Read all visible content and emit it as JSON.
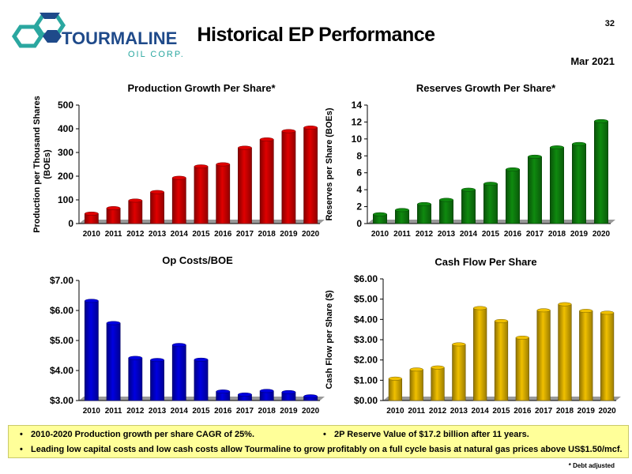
{
  "page_number": "32",
  "title": "Historical EP Performance",
  "date": "Mar 2021",
  "logo": {
    "name": "TOURMALINE",
    "sub": "OIL CORP."
  },
  "colors": {
    "red": "#e00000",
    "green": "#0f8a0f",
    "blue": "#0000e0",
    "gold": "#f0c000",
    "note_bg": "#ffff99",
    "logo_blue": "#1f4a8a",
    "logo_teal": "#2aa7a0"
  },
  "chart_data": [
    {
      "id": "production",
      "type": "bar",
      "title": "Production Growth Per Share*",
      "ylabel": "Production per Thousand Shares (BOEs)",
      "categories": [
        "2010",
        "2011",
        "2012",
        "2013",
        "2014",
        "2015",
        "2016",
        "2017",
        "2018",
        "2019",
        "2020"
      ],
      "values": [
        42,
        65,
        97,
        133,
        193,
        241,
        250,
        320,
        355,
        390,
        405
      ],
      "ylim": [
        0,
        500
      ],
      "yticks": [
        0,
        100,
        200,
        300,
        400,
        500
      ],
      "ytick_labels": [
        "0",
        "100",
        "200",
        "300",
        "400",
        "500"
      ],
      "grid": false,
      "color": "#e00000"
    },
    {
      "id": "reserves",
      "type": "bar",
      "title": "Reserves Growth Per Share*",
      "ylabel": "Reserves per Share (BOEs)",
      "categories": [
        "2010",
        "2011",
        "2012",
        "2013",
        "2014",
        "2015",
        "2016",
        "2017",
        "2018",
        "2019",
        "2020"
      ],
      "values": [
        1.1,
        1.6,
        2.3,
        2.8,
        4.0,
        4.7,
        6.4,
        7.9,
        9.0,
        9.4,
        12.1
      ],
      "ylim": [
        0,
        14
      ],
      "yticks": [
        0,
        2,
        4,
        6,
        8,
        10,
        12,
        14
      ],
      "ytick_labels": [
        "0",
        "2",
        "4",
        "6",
        "8",
        "10",
        "12",
        "14"
      ],
      "grid": false,
      "color": "#0f8a0f"
    },
    {
      "id": "opcosts",
      "type": "bar",
      "title": "Op Costs/BOE",
      "ylabel": "",
      "categories": [
        "2010",
        "2011",
        "2012",
        "2013",
        "2014",
        "2015",
        "2016",
        "2017",
        "2018",
        "2019",
        "2020"
      ],
      "values": [
        6.32,
        5.58,
        4.42,
        4.35,
        4.85,
        4.36,
        3.3,
        3.2,
        3.32,
        3.28,
        3.14
      ],
      "ylim": [
        3,
        7
      ],
      "yticks": [
        3,
        4,
        5,
        6,
        7
      ],
      "ytick_labels": [
        "$3.00",
        "$4.00",
        "$5.00",
        "$6.00",
        "$7.00"
      ],
      "grid": false,
      "color": "#0000e0"
    },
    {
      "id": "cashflow",
      "type": "bar",
      "title": "Cash Flow Per Share",
      "ylabel": "Cash Flow per Share ($)",
      "categories": [
        "2010",
        "2011",
        "2012",
        "2013",
        "2014",
        "2015",
        "2016",
        "2017",
        "2018",
        "2019",
        "2020"
      ],
      "values": [
        1.08,
        1.53,
        1.63,
        2.77,
        4.56,
        3.92,
        3.1,
        4.45,
        4.75,
        4.42,
        4.33
      ],
      "ylim": [
        0,
        6
      ],
      "yticks": [
        0,
        1,
        2,
        3,
        4,
        5,
        6
      ],
      "ytick_labels": [
        "$0.00",
        "$1.00",
        "$2.00",
        "$3.00",
        "$4.00",
        "$5.00",
        "$6.00"
      ],
      "grid": false,
      "color": "#f0c000"
    }
  ],
  "notes": [
    "2010-2020 Production growth per share CAGR of 25%.",
    "2P Reserve Value of $17.2 billion after 11 years.",
    "Leading low capital costs and low cash costs allow Tourmaline to grow profitably on a full cycle basis at natural gas prices above US$1.50/mcf."
  ],
  "footnote": "* Debt adjusted"
}
